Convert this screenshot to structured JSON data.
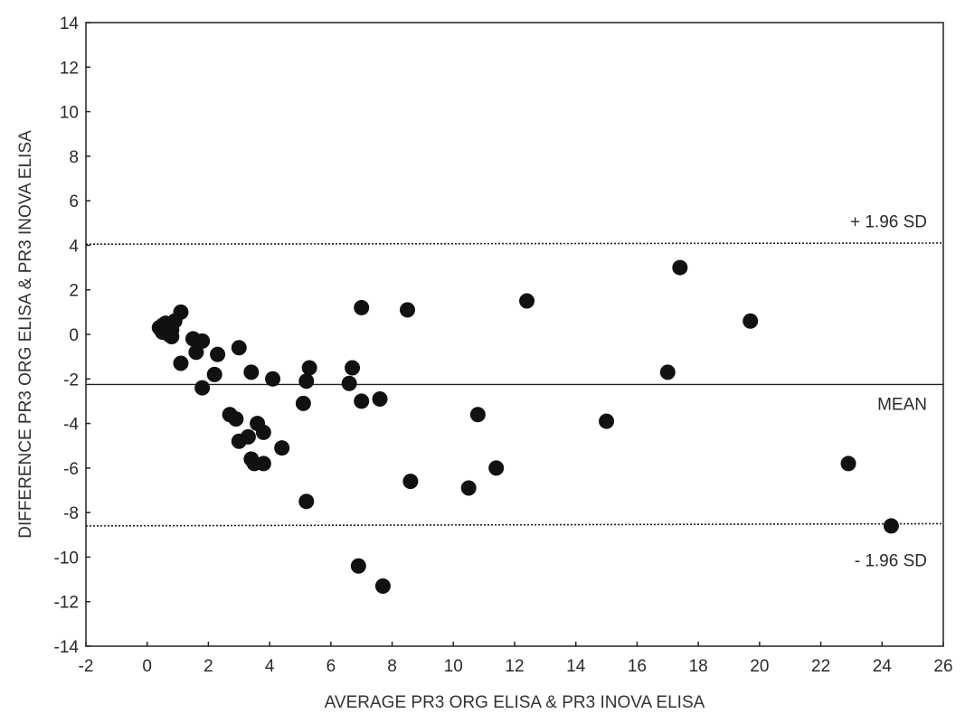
{
  "chart_data": {
    "type": "scatter",
    "title": "",
    "xlabel": "AVERAGE PR3 ORG ELISA & PR3 INOVA ELISA",
    "ylabel": "DIFFERENCE PR3 ORG ELISA & PR3 INOVA ELISA",
    "xlim": [
      -2,
      26
    ],
    "ylim": [
      -14,
      14
    ],
    "xticks": [
      -2,
      0,
      2,
      4,
      6,
      8,
      10,
      12,
      14,
      16,
      18,
      20,
      22,
      24,
      26
    ],
    "yticks": [
      -14,
      -12,
      -10,
      -8,
      -6,
      -4,
      -2,
      0,
      2,
      4,
      6,
      8,
      10,
      12,
      14
    ],
    "grid": false,
    "reference_lines": [
      {
        "label": "+ 1.96 SD",
        "value_start": 4.05,
        "value_end": 4.1,
        "style": "dotted"
      },
      {
        "label": "MEAN",
        "value_start": -2.25,
        "value_end": -2.25,
        "style": "solid"
      },
      {
        "label": "- 1.96 SD",
        "value_start": -8.6,
        "value_end": -8.5,
        "style": "dotted"
      }
    ],
    "points": [
      {
        "x": 0.4,
        "y": 0.3
      },
      {
        "x": 0.5,
        "y": 0.4
      },
      {
        "x": 0.5,
        "y": 0.1
      },
      {
        "x": 0.6,
        "y": 0.5
      },
      {
        "x": 0.7,
        "y": 0.0
      },
      {
        "x": 0.8,
        "y": 0.2
      },
      {
        "x": 0.8,
        "y": -0.1
      },
      {
        "x": 0.9,
        "y": 0.6
      },
      {
        "x": 1.1,
        "y": 1.0
      },
      {
        "x": 1.1,
        "y": -1.3
      },
      {
        "x": 1.5,
        "y": -0.2
      },
      {
        "x": 1.6,
        "y": -0.8
      },
      {
        "x": 1.8,
        "y": -0.3
      },
      {
        "x": 1.8,
        "y": -2.4
      },
      {
        "x": 2.2,
        "y": -1.8
      },
      {
        "x": 2.3,
        "y": -0.9
      },
      {
        "x": 2.7,
        "y": -3.6
      },
      {
        "x": 2.9,
        "y": -3.8
      },
      {
        "x": 3.0,
        "y": -0.6
      },
      {
        "x": 3.0,
        "y": -4.8
      },
      {
        "x": 3.3,
        "y": -4.6
      },
      {
        "x": 3.4,
        "y": -1.7
      },
      {
        "x": 3.4,
        "y": -5.6
      },
      {
        "x": 3.5,
        "y": -5.8
      },
      {
        "x": 3.6,
        "y": -4.0
      },
      {
        "x": 3.8,
        "y": -4.4
      },
      {
        "x": 3.8,
        "y": -5.8
      },
      {
        "x": 4.1,
        "y": -2.0
      },
      {
        "x": 4.4,
        "y": -5.1
      },
      {
        "x": 5.1,
        "y": -3.1
      },
      {
        "x": 5.2,
        "y": -2.1
      },
      {
        "x": 5.2,
        "y": -7.5
      },
      {
        "x": 5.3,
        "y": -1.5
      },
      {
        "x": 6.6,
        "y": -2.2
      },
      {
        "x": 6.7,
        "y": -1.5
      },
      {
        "x": 6.9,
        "y": -10.4
      },
      {
        "x": 7.0,
        "y": 1.2
      },
      {
        "x": 7.0,
        "y": -3.0
      },
      {
        "x": 7.6,
        "y": -2.9
      },
      {
        "x": 7.7,
        "y": -11.3
      },
      {
        "x": 8.5,
        "y": 1.1
      },
      {
        "x": 8.6,
        "y": -6.6
      },
      {
        "x": 10.5,
        "y": -6.9
      },
      {
        "x": 10.8,
        "y": -3.6
      },
      {
        "x": 11.4,
        "y": -6.0
      },
      {
        "x": 12.4,
        "y": 1.5
      },
      {
        "x": 15.0,
        "y": -3.9
      },
      {
        "x": 17.0,
        "y": -1.7
      },
      {
        "x": 17.4,
        "y": 3.0
      },
      {
        "x": 19.7,
        "y": 0.6
      },
      {
        "x": 22.9,
        "y": -5.8
      },
      {
        "x": 24.3,
        "y": -8.6
      }
    ]
  }
}
